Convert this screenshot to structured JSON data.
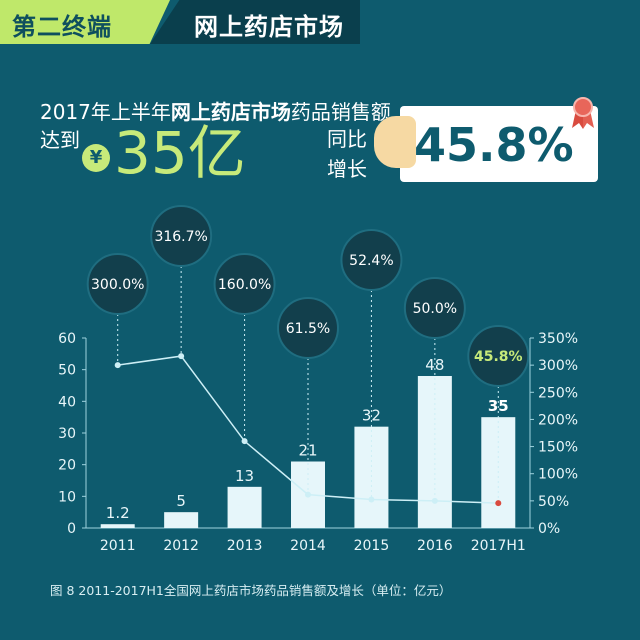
{
  "header": {
    "section_label": "第二终端",
    "topic_label": "网上药店市场"
  },
  "headline": {
    "line1_prefix": "2017年上半年",
    "line1_highlight": "网上药店市场",
    "line1_suffix": "药品销售额",
    "reach_label": "达到",
    "currency_symbol": "¥",
    "amount": "35亿",
    "yoy_label_1": "同比",
    "yoy_label_2": "增长",
    "yoy_value": "45.8%"
  },
  "caption": "图 8   2011-2017H1全国网上药店市场药品销售额及增长（单位：亿元）",
  "colors": {
    "background": "#0e5b6e",
    "accent_green": "#c7ea7a",
    "bar_fill": "#e6f6fa",
    "line_color": "#cdeff6",
    "bubble_fill": "#123f4c"
  },
  "chart_data": {
    "type": "bar",
    "categories": [
      "2011",
      "2012",
      "2013",
      "2014",
      "2015",
      "2016",
      "2017H1"
    ],
    "series": [
      {
        "values": [
          1.2,
          5,
          13,
          21,
          32,
          48,
          35
        ],
        "axis": "left",
        "kind": "bar"
      },
      {
        "values": [
          300.0,
          316.7,
          160.0,
          61.5,
          52.4,
          50.0,
          45.8
        ],
        "axis": "right",
        "kind": "line",
        "unit": "%"
      }
    ],
    "bar_labels": [
      "1.2",
      "5",
      "13",
      "21",
      "32",
      "48",
      "35"
    ],
    "growth_labels": [
      "300.0%",
      "316.7%",
      "160.0%",
      "61.5%",
      "52.4%",
      "50.0%",
      "45.8%"
    ],
    "left_axis": {
      "ylim": [
        0,
        60
      ],
      "ticks": [
        "0",
        "10",
        "20",
        "30",
        "40",
        "50",
        "60"
      ]
    },
    "right_axis": {
      "ylim": [
        0,
        350
      ],
      "ticks": [
        "0%",
        "50%",
        "100%",
        "150%",
        "200%",
        "250%",
        "300%",
        "350%"
      ]
    },
    "grid": false
  }
}
